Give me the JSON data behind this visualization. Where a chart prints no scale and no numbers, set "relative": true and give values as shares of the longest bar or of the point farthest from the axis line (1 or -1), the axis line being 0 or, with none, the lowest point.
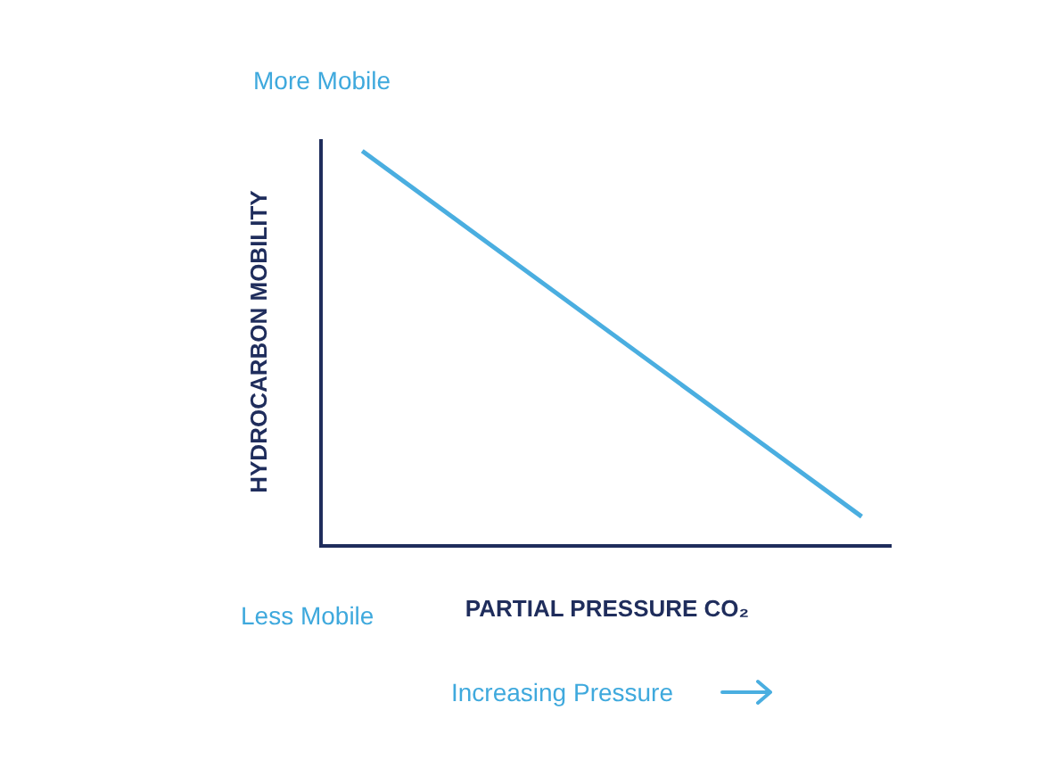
{
  "chart_data": {
    "type": "line",
    "relative": true,
    "xlabel": "PARTIAL PRESSURE CO₂",
    "ylabel": "HYDROCARBON MOBILITY",
    "categories": [
      null,
      null
    ],
    "series": [
      {
        "color": "#4aaee0",
        "values": [
          1,
          0.07
        ]
      }
    ],
    "annotations": [
      "More Mobile",
      "Less Mobile",
      "Increasing Pressure"
    ],
    "grid": false,
    "marker": "none",
    "line_style": "solid"
  }
}
